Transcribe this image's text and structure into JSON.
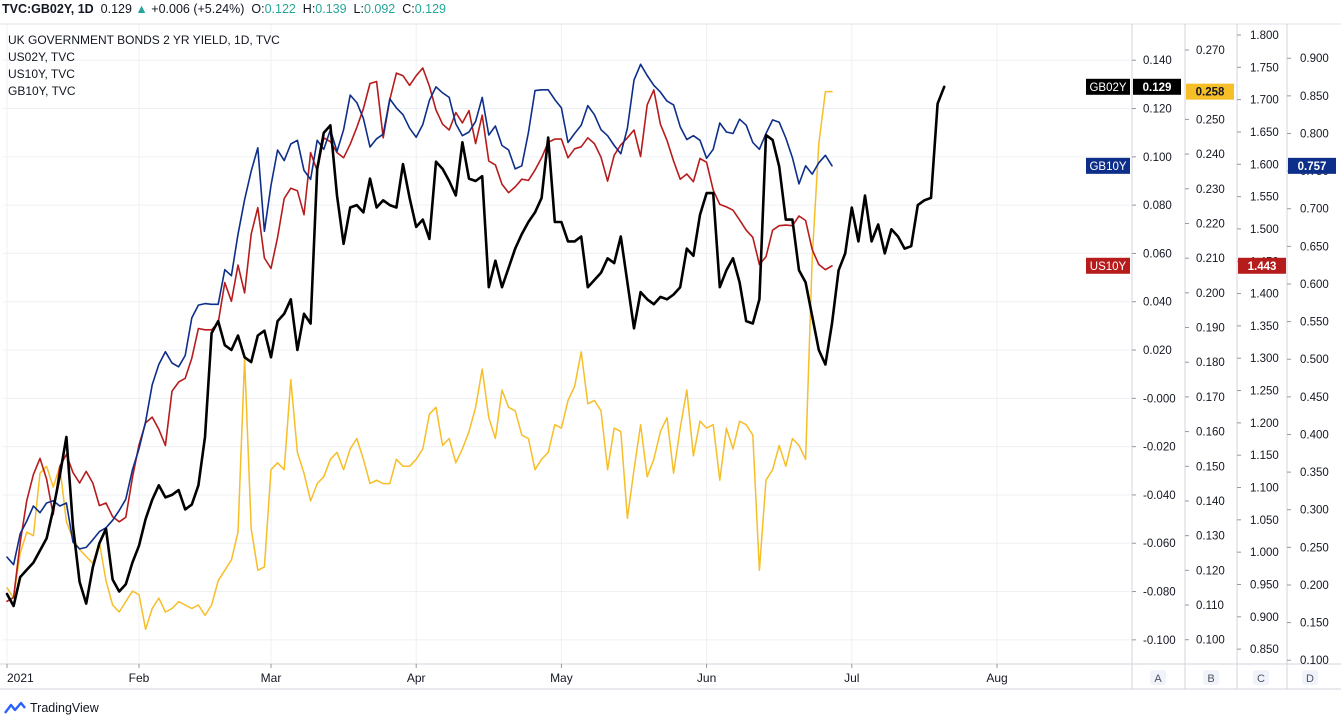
{
  "header": {
    "symbol": "TVC:GB02Y, 1D",
    "last": "0.129",
    "change": "+0.006 (+5.24%)",
    "o_label": "O:",
    "o": "0.122",
    "h_label": "H:",
    "h": "0.139",
    "l_label": "L:",
    "l": "0.092",
    "c_label": "C:",
    "c": "0.129"
  },
  "legend": {
    "title": "UK GOVERNMENT BONDS 2 YR YIELD, 1D, TVC",
    "items": [
      "US02Y, TVC",
      "US10Y, TVC",
      "GB10Y, TVC"
    ]
  },
  "brand": "TradingView",
  "colors": {
    "GB02Y": "#000000",
    "US02Y": "#f6be27",
    "US10Y": "#b71c1c",
    "GB10Y": "#0d2f8a",
    "grid": "#eef0f4",
    "axis_text": "#131722"
  },
  "chart_data": {
    "type": "line",
    "x_tick_labels": [
      "2021",
      "Feb",
      "Mar",
      "Apr",
      "May",
      "Jun",
      "Jul",
      "Aug"
    ],
    "x_ticks_start_index": [
      0,
      20,
      40,
      62,
      84,
      106,
      128,
      150
    ],
    "axes": [
      {
        "id": "A",
        "ticks": [
          "0.140",
          "0.120",
          "0.100",
          "0.080",
          "0.060",
          "0.040",
          "0.020",
          "-0.000",
          "-0.020",
          "-0.040",
          "-0.060",
          "-0.080",
          "-0.100"
        ],
        "range": [
          -0.11,
          0.155
        ]
      },
      {
        "id": "B",
        "ticks": [
          "0.270",
          "0.250",
          "0.240",
          "0.230",
          "0.220",
          "0.210",
          "0.200",
          "0.190",
          "0.180",
          "0.170",
          "0.160",
          "0.150",
          "0.140",
          "0.130",
          "0.120",
          "0.110",
          "0.100"
        ],
        "range": [
          0.093,
          0.2775
        ]
      },
      {
        "id": "C",
        "ticks": [
          "1.800",
          "1.750",
          "1.700",
          "1.650",
          "1.600",
          "1.550",
          "1.500",
          "1.450",
          "1.400",
          "1.350",
          "1.300",
          "1.250",
          "1.200",
          "1.150",
          "1.100",
          "1.050",
          "1.000",
          "0.950",
          "0.900",
          "0.850"
        ],
        "range": [
          0.827,
          1.817
        ]
      },
      {
        "id": "D",
        "ticks": [
          "0.900",
          "0.850",
          "0.800",
          "0.750",
          "0.700",
          "0.650",
          "0.600",
          "0.550",
          "0.500",
          "0.450",
          "0.400",
          "0.350",
          "0.300",
          "0.250",
          "0.200",
          "0.150",
          "0.100"
        ],
        "range": [
          0.095,
          0.9455
        ]
      }
    ],
    "axis_letters": [
      "A",
      "B",
      "C",
      "D"
    ],
    "series": [
      {
        "name": "GB02Y",
        "axis": "A",
        "last_label": "0.129",
        "values": [
          -0.081,
          -0.086,
          -0.074,
          -0.071,
          -0.068,
          -0.063,
          -0.058,
          -0.046,
          -0.032,
          -0.016,
          -0.053,
          -0.076,
          -0.085,
          -0.07,
          -0.06,
          -0.054,
          -0.075,
          -0.08,
          -0.077,
          -0.068,
          -0.061,
          -0.05,
          -0.042,
          -0.036,
          -0.041,
          -0.04,
          -0.038,
          -0.046,
          -0.044,
          -0.036,
          -0.016,
          0.027,
          0.032,
          0.022,
          0.02,
          0.026,
          0.017,
          0.015,
          0.026,
          0.028,
          0.017,
          0.032,
          0.035,
          0.041,
          0.02,
          0.035,
          0.031,
          0.095,
          0.11,
          0.113,
          0.084,
          0.064,
          0.079,
          0.08,
          0.077,
          0.091,
          0.079,
          0.082,
          0.08,
          0.079,
          0.097,
          0.083,
          0.071,
          0.074,
          0.066,
          0.098,
          0.095,
          0.09,
          0.084,
          0.106,
          0.091,
          0.09,
          0.092,
          0.046,
          0.057,
          0.046,
          0.054,
          0.062,
          0.068,
          0.073,
          0.077,
          0.083,
          0.108,
          0.073,
          0.073,
          0.065,
          0.065,
          0.067,
          0.046,
          0.049,
          0.052,
          0.058,
          0.056,
          0.067,
          0.048,
          0.029,
          0.044,
          0.041,
          0.039,
          0.042,
          0.041,
          0.043,
          0.046,
          0.062,
          0.059,
          0.076,
          0.085,
          0.085,
          0.046,
          0.053,
          0.058,
          0.048,
          0.032,
          0.031,
          0.041,
          0.109,
          0.107,
          0.096,
          0.074,
          0.074,
          0.053,
          0.048,
          0.034,
          0.02,
          0.014,
          0.031,
          0.053,
          0.06,
          0.079,
          0.065,
          0.084,
          0.065,
          0.072,
          0.06,
          0.07,
          0.067,
          0.062,
          0.063,
          0.08,
          0.082,
          0.083,
          0.122,
          0.129
        ]
      },
      {
        "name": "US02Y",
        "axis": "B",
        "last_label": "0.258",
        "values": [
          0.115,
          0.112,
          0.125,
          0.131,
          0.13,
          0.148,
          0.15,
          0.144,
          0.15,
          0.134,
          0.129,
          0.126,
          0.124,
          0.122,
          0.128,
          0.117,
          0.11,
          0.108,
          0.111,
          0.114,
          0.113,
          0.103,
          0.109,
          0.112,
          0.108,
          0.109,
          0.111,
          0.11,
          0.109,
          0.11,
          0.107,
          0.11,
          0.117,
          0.12,
          0.123,
          0.131,
          0.181,
          0.132,
          0.12,
          0.121,
          0.149,
          0.151,
          0.149,
          0.175,
          0.154,
          0.148,
          0.14,
          0.145,
          0.147,
          0.152,
          0.154,
          0.149,
          0.155,
          0.158,
          0.152,
          0.145,
          0.146,
          0.145,
          0.145,
          0.152,
          0.15,
          0.15,
          0.152,
          0.155,
          0.165,
          0.167,
          0.156,
          0.158,
          0.151,
          0.155,
          0.16,
          0.167,
          0.178,
          0.164,
          0.158,
          0.172,
          0.167,
          0.166,
          0.159,
          0.158,
          0.149,
          0.152,
          0.154,
          0.162,
          0.161,
          0.169,
          0.173,
          0.183,
          0.168,
          0.169,
          0.166,
          0.149,
          0.161,
          0.16,
          0.135,
          0.149,
          0.162,
          0.147,
          0.152,
          0.16,
          0.164,
          0.148,
          0.161,
          0.172,
          0.153,
          0.163,
          0.161,
          0.162,
          0.146,
          0.161,
          0.155,
          0.163,
          0.162,
          0.159,
          0.12,
          0.146,
          0.149,
          0.156,
          0.15,
          0.158,
          0.156,
          0.152,
          0.21,
          0.243,
          0.258,
          0.258
        ]
      },
      {
        "name": "US10Y",
        "axis": "C",
        "last_label": "1.443",
        "values": [
          0.924,
          0.93,
          1.015,
          1.08,
          1.12,
          1.145,
          1.113,
          1.058,
          1.133,
          1.151,
          1.123,
          1.107,
          1.125,
          1.107,
          1.072,
          1.076,
          1.055,
          1.047,
          1.054,
          1.115,
          1.166,
          1.2,
          1.209,
          1.19,
          1.165,
          1.249,
          1.263,
          1.269,
          1.3,
          1.346,
          1.344,
          1.344,
          1.355,
          1.417,
          1.388,
          1.444,
          1.401,
          1.492,
          1.533,
          1.455,
          1.439,
          1.487,
          1.547,
          1.563,
          1.559,
          1.522,
          1.618,
          1.59,
          1.641,
          1.635,
          1.618,
          1.61,
          1.631,
          1.657,
          1.686,
          1.725,
          1.728,
          1.641,
          1.7,
          1.741,
          1.737,
          1.722,
          1.737,
          1.749,
          1.721,
          1.684,
          1.662,
          1.653,
          1.68,
          1.664,
          1.683,
          1.632,
          1.676,
          1.605,
          1.599,
          1.569,
          1.556,
          1.565,
          1.577,
          1.575,
          1.591,
          1.61,
          1.634,
          1.639,
          1.639,
          1.61,
          1.624,
          1.627,
          1.641,
          1.632,
          1.611,
          1.574,
          1.614,
          1.63,
          1.641,
          1.653,
          1.612,
          1.692,
          1.715,
          1.662,
          1.637,
          1.605,
          1.577,
          1.585,
          1.573,
          1.609,
          1.603,
          1.56,
          1.538,
          1.534,
          1.529,
          1.514,
          1.498,
          1.487,
          1.445,
          1.457,
          1.498,
          1.505,
          1.506,
          1.505,
          1.52,
          1.513,
          1.468,
          1.445,
          1.437,
          1.443
        ]
      },
      {
        "name": "GB10Y",
        "axis": "D",
        "last_label": "0.757",
        "values": [
          0.237,
          0.227,
          0.268,
          0.285,
          0.305,
          0.296,
          0.309,
          0.312,
          0.305,
          0.309,
          0.257,
          0.248,
          0.25,
          0.26,
          0.271,
          0.276,
          0.286,
          0.299,
          0.314,
          0.353,
          0.381,
          0.417,
          0.466,
          0.493,
          0.51,
          0.495,
          0.49,
          0.505,
          0.555,
          0.572,
          0.574,
          0.573,
          0.573,
          0.619,
          0.611,
          0.666,
          0.712,
          0.75,
          0.781,
          0.67,
          0.731,
          0.778,
          0.764,
          0.786,
          0.791,
          0.751,
          0.739,
          0.791,
          0.779,
          0.805,
          0.776,
          0.805,
          0.851,
          0.841,
          0.82,
          0.782,
          0.793,
          0.799,
          0.846,
          0.834,
          0.825,
          0.807,
          0.795,
          0.812,
          0.844,
          0.862,
          0.854,
          0.848,
          0.813,
          0.797,
          0.802,
          0.816,
          0.848,
          0.798,
          0.81,
          0.784,
          0.778,
          0.753,
          0.757,
          0.801,
          0.857,
          0.858,
          0.858,
          0.845,
          0.834,
          0.788,
          0.8,
          0.811,
          0.837,
          0.825,
          0.805,
          0.797,
          0.784,
          0.773,
          0.807,
          0.871,
          0.892,
          0.877,
          0.864,
          0.855,
          0.843,
          0.838,
          0.809,
          0.792,
          0.797,
          0.791,
          0.767,
          0.779,
          0.814,
          0.802,
          0.8,
          0.819,
          0.811,
          0.788,
          0.779,
          0.8,
          0.818,
          0.815,
          0.794,
          0.768,
          0.733,
          0.757,
          0.746,
          0.761,
          0.771,
          0.757
        ]
      }
    ],
    "grid": true,
    "legend_position": "top-left"
  }
}
